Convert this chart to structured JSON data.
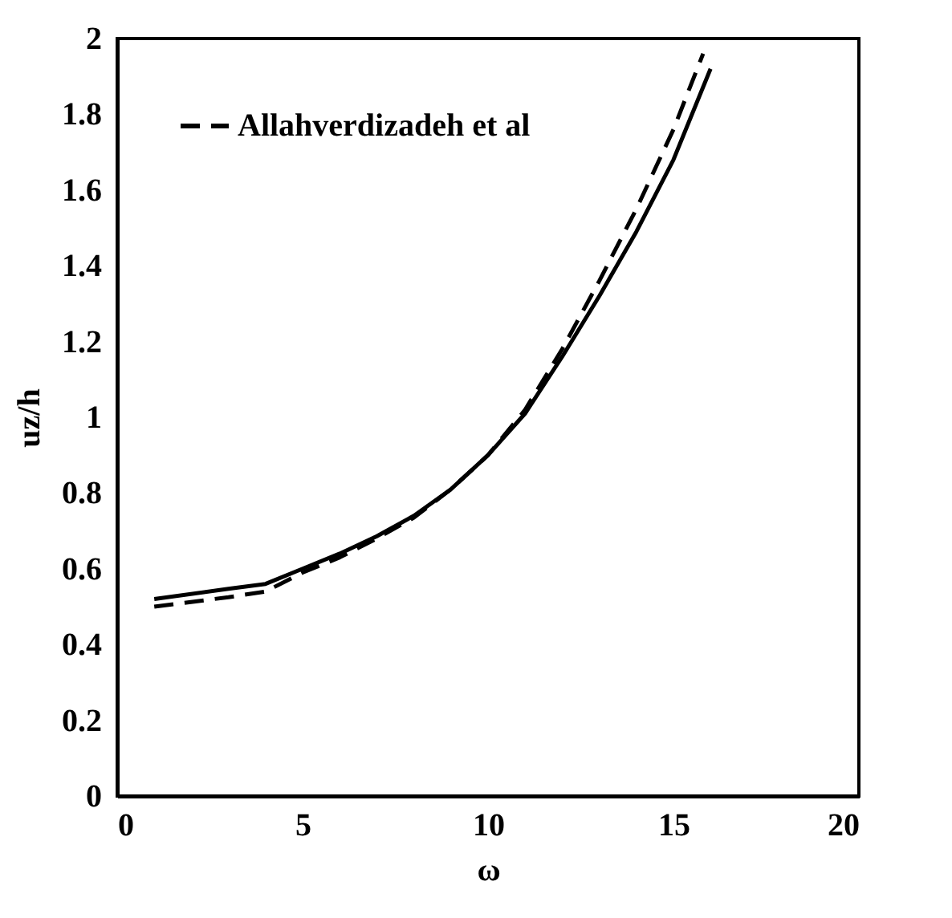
{
  "chart_data": {
    "type": "line",
    "xlabel": "ω",
    "ylabel": "uz/h",
    "xlim": [
      0,
      20
    ],
    "xticks": [
      0,
      5,
      10,
      15,
      20
    ],
    "ylim": [
      0,
      2
    ],
    "yticks": [
      0,
      0.2,
      0.4,
      0.6,
      0.8,
      1,
      1.2,
      1.4,
      1.6,
      1.8,
      2
    ],
    "grid": false,
    "legend": "top left",
    "marker": "none",
    "series": [
      {
        "color": "#000000",
        "line_style": "solid",
        "x": [
          1,
          3,
          4,
          5,
          6,
          7,
          8,
          9,
          10,
          11,
          12,
          13,
          14,
          15,
          16
        ],
        "values": [
          0.52,
          0.547,
          0.56,
          0.6,
          0.64,
          0.686,
          0.74,
          0.81,
          0.9,
          1.01,
          1.16,
          1.32,
          1.49,
          1.68,
          1.92
        ]
      },
      {
        "name": "Allahverdizadeh et al",
        "color": "#000000",
        "line_style": "dashed",
        "x": [
          1,
          3,
          4,
          5,
          6,
          7,
          8,
          9,
          10,
          11,
          12,
          13,
          14,
          15,
          15.8
        ],
        "values": [
          0.5,
          0.525,
          0.54,
          0.59,
          0.63,
          0.68,
          0.735,
          0.81,
          0.9,
          1.02,
          1.18,
          1.36,
          1.55,
          1.76,
          1.96
        ]
      }
    ]
  }
}
